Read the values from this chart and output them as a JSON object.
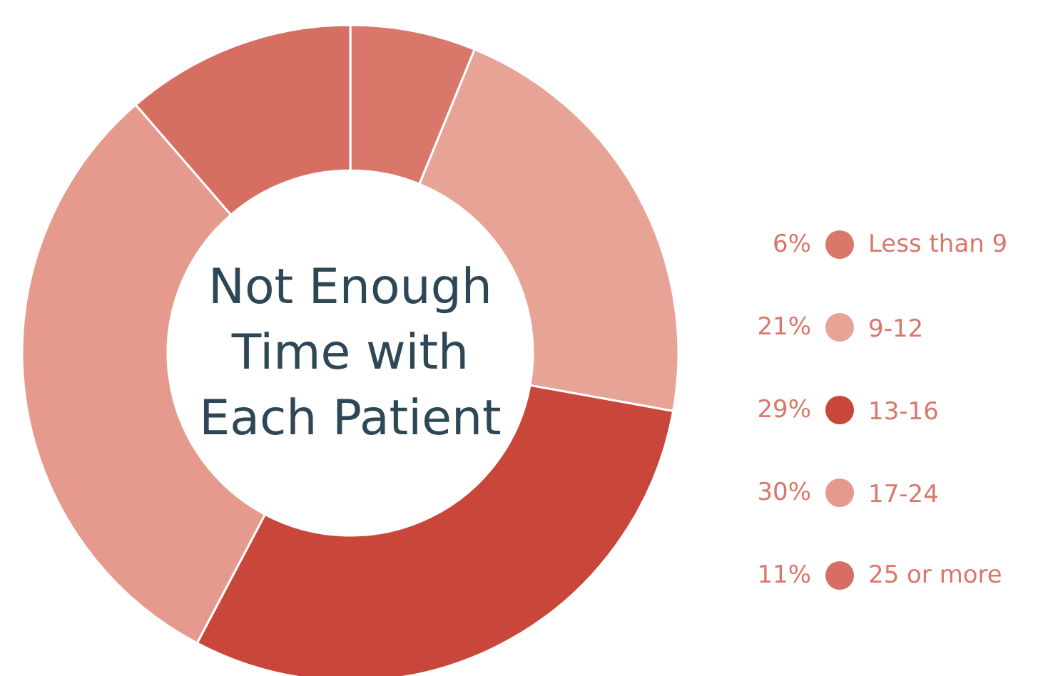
{
  "chart_data": {
    "type": "donut",
    "title": "Not Enough Time with Each Patient",
    "categories": [
      "Less than 9",
      "9-12",
      "13-16",
      "17-24",
      "25 or more"
    ],
    "values": [
      6,
      21,
      29,
      30,
      11
    ],
    "value_labels": [
      "6%",
      "21%",
      "29%",
      "30%",
      "11%"
    ],
    "colors": [
      "#d9776a",
      "#e8a397",
      "#c9463a",
      "#e6998d",
      "#d66f62"
    ],
    "legend": "right"
  }
}
